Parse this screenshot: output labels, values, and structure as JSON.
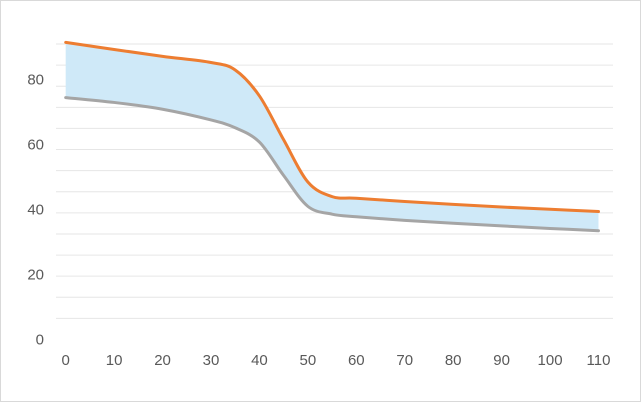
{
  "chart_data": {
    "type": "area",
    "title": "",
    "xlabel": "",
    "ylabel": "",
    "xlim": [
      -2,
      113
    ],
    "ylim": [
      -2,
      95
    ],
    "x_ticks": [
      "0",
      "10",
      "20",
      "30",
      "40",
      "50",
      "60",
      "70",
      "80",
      "90",
      "100",
      "110"
    ],
    "y_ticks": [
      "0",
      "20",
      "40",
      "60",
      "80"
    ],
    "grid": true,
    "legend": "none",
    "fill_color": "#cfe9f8",
    "x": [
      0,
      10,
      20,
      30,
      35,
      40,
      45,
      50,
      55,
      60,
      70,
      80,
      90,
      100,
      110
    ],
    "series": [
      {
        "color": "#ed7d31",
        "values": [
          91.5,
          89.3,
          87.2,
          85.3,
          83.0,
          75.0,
          61.5,
          48.5,
          44.0,
          43.5,
          42.5,
          41.6,
          40.8,
          40.1,
          39.4
        ]
      },
      {
        "color": "#a5a5a5",
        "values": [
          74.5,
          73.0,
          70.9,
          67.6,
          65.2,
          60.8,
          50.5,
          41.0,
          38.6,
          37.8,
          36.7,
          35.8,
          35.0,
          34.2,
          33.5
        ]
      }
    ]
  }
}
